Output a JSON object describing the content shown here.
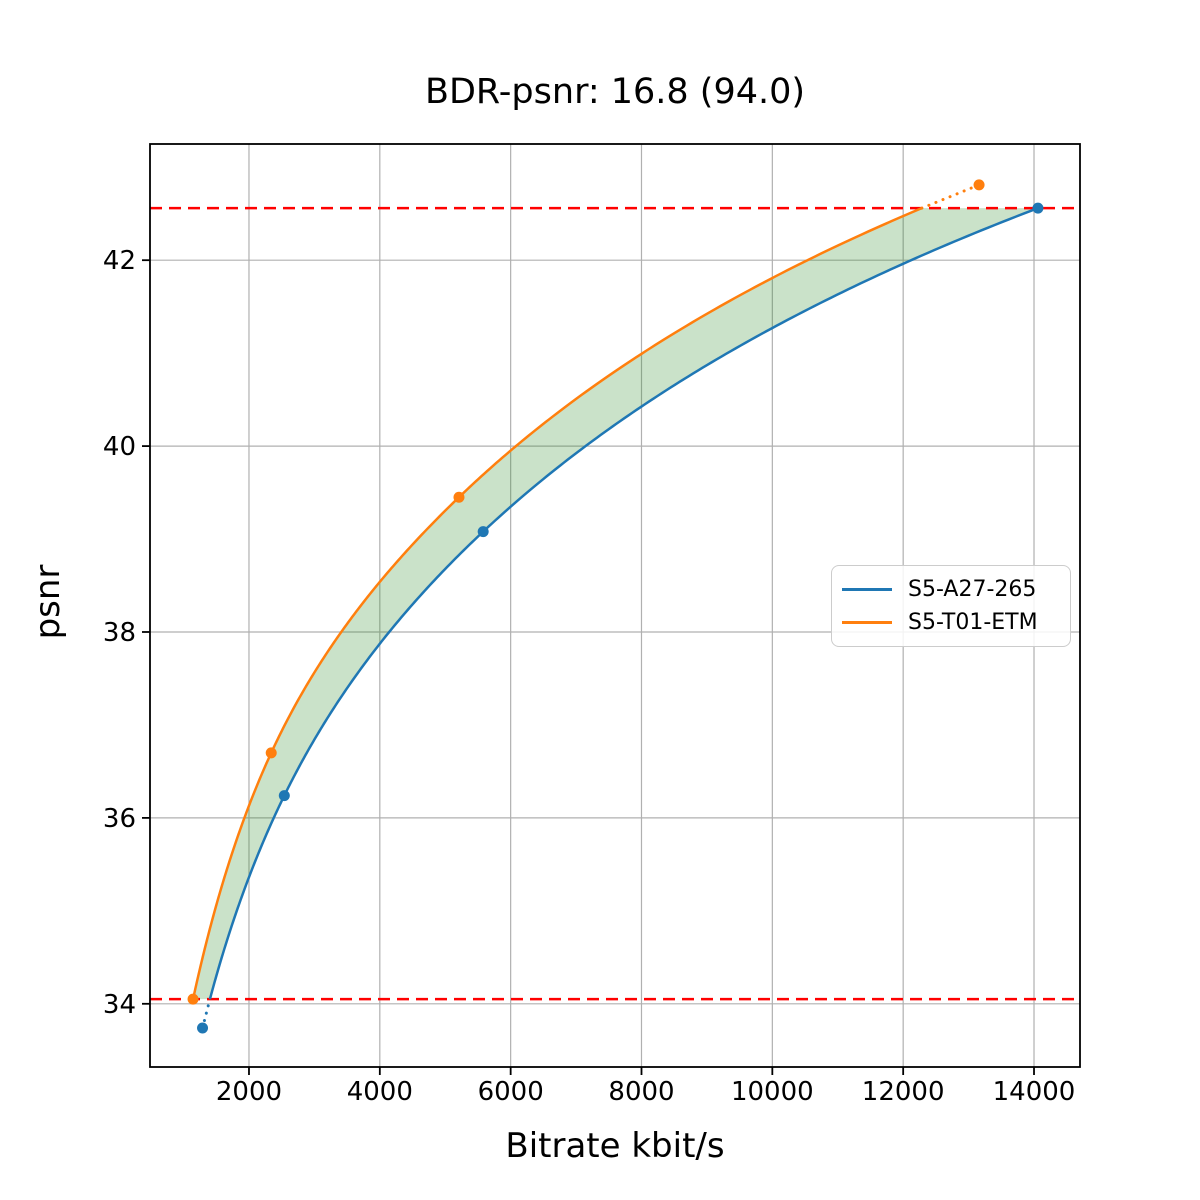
{
  "chart_data": {
    "type": "line",
    "title": "BDR-psnr: 16.8 (94.0)",
    "xlabel": "Bitrate kbit/s",
    "ylabel": "psnr",
    "xlim": [
      487,
      14703
    ],
    "ylim": [
      33.32,
      43.25
    ],
    "xticks": [
      2000,
      4000,
      6000,
      8000,
      10000,
      12000,
      14000
    ],
    "yticks": [
      34,
      36,
      38,
      40,
      42
    ],
    "grid": true,
    "grid_color": "#b0b0b0",
    "series": [
      {
        "name": "S5-A27-265",
        "color": "#1f77b4",
        "points": [
          [
            1290,
            33.74
          ],
          [
            2540,
            36.24
          ],
          [
            5580,
            39.08
          ],
          [
            14060,
            42.56
          ]
        ]
      },
      {
        "name": "S5-T01-ETM",
        "color": "#ff7f0e",
        "points": [
          [
            1145,
            34.05
          ],
          [
            2340,
            36.7
          ],
          [
            5210,
            39.45
          ],
          [
            13160,
            42.81
          ]
        ]
      }
    ],
    "reference_lines": {
      "values": [
        34.05,
        42.56
      ],
      "color": "#ff0000",
      "style": "dashed"
    },
    "fill_between": {
      "color": "#2c8a26",
      "opacity": 0.25,
      "clip_to": [
        34.05,
        42.56
      ]
    },
    "legend_position": "center-right"
  }
}
